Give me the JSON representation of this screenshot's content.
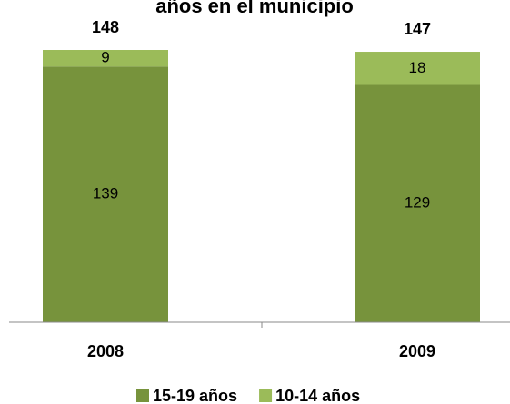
{
  "chart_data": {
    "type": "stacked_bar",
    "title": "años en el municipio",
    "categories": [
      "2008",
      "2009"
    ],
    "series": [
      {
        "name": "15-19 años",
        "color": "#77933c",
        "values": [
          139,
          129
        ]
      },
      {
        "name": "10-14 años",
        "color": "#9bbb59",
        "values": [
          9,
          18
        ]
      }
    ],
    "totals": [
      148,
      147
    ],
    "legend": "bottom"
  }
}
